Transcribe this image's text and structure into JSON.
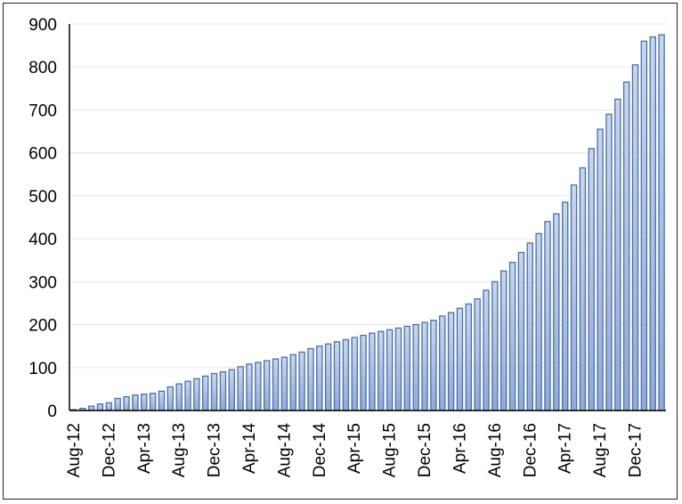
{
  "chart_data": {
    "type": "bar",
    "title": "",
    "xlabel": "",
    "ylabel": "",
    "ylim": [
      0,
      900
    ],
    "yticks": [
      0,
      100,
      200,
      300,
      400,
      500,
      600,
      700,
      800,
      900
    ],
    "grid": true,
    "legend": "none",
    "start_month": "Aug-12",
    "xtick_labels": [
      "Aug-12",
      "Dec-12",
      "Apr-13",
      "Aug-13",
      "Dec-13",
      "Apr-14",
      "Aug-14",
      "Dec-14",
      "Apr-15",
      "Aug-15",
      "Dec-15",
      "Apr-16",
      "Aug-16",
      "Dec-16",
      "Apr-17",
      "Aug-17",
      "Dec-17"
    ],
    "xtick_every": 4,
    "values": [
      2,
      5,
      10,
      15,
      18,
      28,
      32,
      36,
      38,
      40,
      45,
      55,
      62,
      68,
      74,
      80,
      86,
      90,
      95,
      102,
      108,
      112,
      116,
      120,
      124,
      130,
      136,
      144,
      150,
      155,
      160,
      165,
      170,
      175,
      180,
      184,
      188,
      192,
      196,
      200,
      205,
      210,
      220,
      228,
      238,
      248,
      260,
      280,
      300,
      325,
      345,
      368,
      390,
      412,
      440,
      458,
      485,
      525,
      565,
      610,
      655,
      690,
      725,
      765,
      805,
      860,
      870,
      875
    ]
  },
  "colors": {
    "bar_fill_top": "#c7d7ef",
    "bar_fill_bottom": "#8eaadb",
    "bar_stroke": "#4a6fa6",
    "grid": "#e6e6e6"
  }
}
